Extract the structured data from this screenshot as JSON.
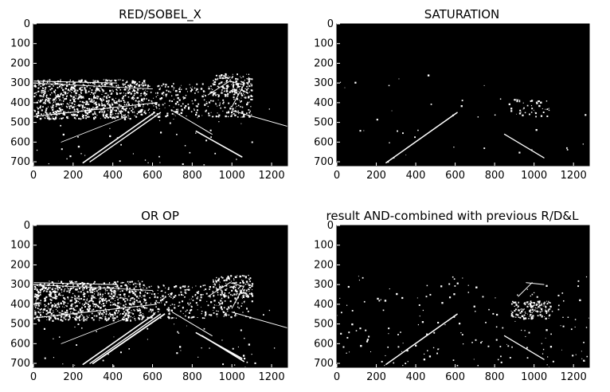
{
  "panels": [
    {
      "title": "RED/SOBEL_X",
      "xticks": [
        "0",
        "200",
        "400",
        "600",
        "800",
        "1000",
        "1200"
      ],
      "yticks": [
        "0",
        "100",
        "200",
        "300",
        "400",
        "500",
        "600",
        "700"
      ],
      "image": "binary-threshold-road-red-sobel-x"
    },
    {
      "title": "SATURATION",
      "xticks": [
        "0",
        "200",
        "400",
        "600",
        "800",
        "1000",
        "1200"
      ],
      "yticks": [
        "0",
        "100",
        "200",
        "300",
        "400",
        "500",
        "600",
        "700"
      ],
      "image": "binary-threshold-road-saturation"
    },
    {
      "title": "OR OP",
      "xticks": [
        "0",
        "200",
        "400",
        "600",
        "800",
        "1000",
        "1200"
      ],
      "yticks": [
        "0",
        "100",
        "200",
        "300",
        "400",
        "500",
        "600",
        "700"
      ],
      "image": "binary-threshold-road-or-op"
    },
    {
      "title": "result AND-combined with previous R/D&L",
      "xticks": [
        "0",
        "200",
        "400",
        "600",
        "800",
        "1000",
        "1200"
      ],
      "yticks": [
        "0",
        "100",
        "200",
        "300",
        "400",
        "500",
        "600",
        "700"
      ],
      "image": "binary-threshold-road-and-combined"
    }
  ],
  "colors": {
    "background": "#ffffff",
    "image_bg": "#000000",
    "mask": "#ffffff",
    "text": "#000000"
  }
}
